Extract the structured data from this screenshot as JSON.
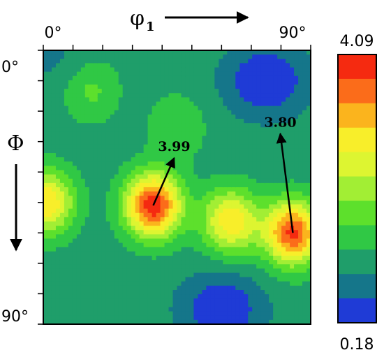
{
  "chart_data": {
    "type": "heatmap",
    "title": "",
    "x_axis": {
      "symbol": "φ",
      "subscript": "1",
      "tick_labels": [
        "0°",
        "90°"
      ],
      "range": [
        0,
        90
      ],
      "unit": "degrees"
    },
    "y_axis": {
      "symbol": "Φ",
      "tick_labels": [
        "0°",
        "90°"
      ],
      "range": [
        0,
        90
      ],
      "unit": "degrees"
    },
    "colorbar": {
      "max_label": "4.09",
      "min_label": "0.18",
      "min": 0.18,
      "max": 4.09,
      "levels": 11,
      "colors_top_to_bottom": [
        "#f52a10",
        "#fb6c1a",
        "#fbb41d",
        "#f8ee2a",
        "#ddf531",
        "#a2ee34",
        "#5de02c",
        "#30c845",
        "#1f9e6a",
        "#15768a",
        "#1f3bd6"
      ]
    },
    "annotations": [
      {
        "label": "3.99",
        "value": 3.99,
        "phi1": 37,
        "Phi": 51
      },
      {
        "label": "3.80",
        "value": 3.8,
        "phi1": 84,
        "Phi": 60
      }
    ],
    "peaks": [
      {
        "phi1": 37,
        "Phi": 51,
        "value": 3.99
      },
      {
        "phi1": 84,
        "Phi": 60,
        "value": 3.8
      },
      {
        "phi1": 1,
        "Phi": 50,
        "value": 3.0
      },
      {
        "phi1": 63,
        "Phi": 56,
        "value": 2.95
      },
      {
        "phi1": 16,
        "Phi": 13,
        "value": 1.7
      },
      {
        "phi1": 45,
        "Phi": 25,
        "value": 1.6
      }
    ],
    "low_regions": [
      {
        "phi1": 75,
        "Phi": 10,
        "value": 0.3
      },
      {
        "phi1": 60,
        "Phi": 85,
        "value": 0.35
      },
      {
        "phi1": 5,
        "Phi": 3,
        "value": 1.0
      }
    ]
  }
}
